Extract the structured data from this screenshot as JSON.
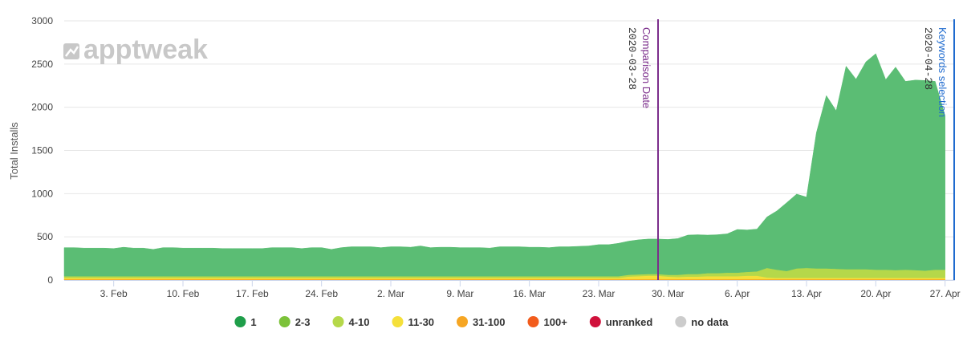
{
  "watermark": {
    "text": "apptweak"
  },
  "chart_data": {
    "type": "area",
    "stacked": true,
    "ylabel": "Total Installs",
    "ylim": [
      0,
      3000
    ],
    "y_ticks": [
      0,
      500,
      1000,
      1500,
      2000,
      2500,
      3000
    ],
    "x_start": "2020-01-29",
    "x_end": "2020-04-28",
    "x_ticks": [
      {
        "day": 5,
        "label": "3. Feb"
      },
      {
        "day": 12,
        "label": "10. Feb"
      },
      {
        "day": 19,
        "label": "17. Feb"
      },
      {
        "day": 26,
        "label": "24. Feb"
      },
      {
        "day": 33,
        "label": "2. Mar"
      },
      {
        "day": 40,
        "label": "9. Mar"
      },
      {
        "day": 47,
        "label": "16. Mar"
      },
      {
        "day": 54,
        "label": "23. Mar"
      },
      {
        "day": 61,
        "label": "30. Mar"
      },
      {
        "day": 68,
        "label": "6. Apr"
      },
      {
        "day": 75,
        "label": "13. Apr"
      },
      {
        "day": 82,
        "label": "20. Apr"
      },
      {
        "day": 89,
        "label": "27. Apr"
      }
    ],
    "x_day_range": [
      0,
      90
    ],
    "series": [
      {
        "name": "31-100",
        "color": "#f6a623",
        "values": [
          10,
          10,
          10,
          10,
          10,
          10,
          10,
          10,
          10,
          10,
          10,
          10,
          10,
          10,
          10,
          10,
          10,
          10,
          10,
          10,
          10,
          10,
          10,
          10,
          10,
          10,
          10,
          10,
          10,
          10,
          10,
          10,
          10,
          10,
          10,
          10,
          10,
          10,
          10,
          10,
          10,
          10,
          10,
          10,
          10,
          10,
          10,
          10,
          10,
          10,
          10,
          10,
          10,
          10,
          10,
          10,
          10,
          10,
          10,
          10,
          10,
          10,
          10,
          10,
          10,
          10,
          10,
          10,
          10,
          10,
          10,
          10,
          10,
          10,
          10,
          10,
          10,
          10,
          10,
          10,
          10,
          10,
          10,
          10,
          10,
          10,
          10,
          10,
          10,
          10
        ]
      },
      {
        "name": "11-30",
        "color": "#f5e03a",
        "values": [
          15,
          15,
          15,
          15,
          15,
          15,
          15,
          15,
          15,
          15,
          15,
          15,
          15,
          15,
          15,
          15,
          15,
          15,
          15,
          15,
          15,
          15,
          15,
          15,
          15,
          15,
          15,
          15,
          15,
          15,
          15,
          15,
          15,
          15,
          15,
          15,
          15,
          15,
          15,
          15,
          15,
          15,
          15,
          15,
          15,
          15,
          15,
          15,
          15,
          15,
          15,
          15,
          15,
          15,
          15,
          15,
          15,
          30,
          35,
          40,
          40,
          30,
          25,
          30,
          30,
          35,
          35,
          35,
          35,
          40,
          40,
          20,
          15,
          15,
          15,
          15,
          15,
          15,
          15,
          15,
          15,
          15,
          15,
          15,
          15,
          15,
          15,
          15,
          15,
          15
        ]
      },
      {
        "name": "4-10",
        "color": "#b5d84a",
        "values": [
          20,
          20,
          20,
          20,
          20,
          20,
          20,
          20,
          20,
          20,
          20,
          20,
          20,
          20,
          20,
          20,
          20,
          20,
          20,
          20,
          20,
          20,
          20,
          20,
          20,
          20,
          20,
          20,
          20,
          20,
          20,
          20,
          20,
          20,
          20,
          20,
          20,
          20,
          20,
          20,
          20,
          20,
          20,
          20,
          20,
          20,
          20,
          20,
          20,
          20,
          20,
          20,
          20,
          20,
          20,
          20,
          20,
          20,
          20,
          20,
          20,
          20,
          25,
          30,
          30,
          35,
          35,
          40,
          40,
          45,
          50,
          110,
          95,
          80,
          110,
          115,
          110,
          110,
          105,
          100,
          100,
          100,
          95,
          95,
          90,
          95,
          90,
          85,
          95,
          95
        ]
      },
      {
        "name": "1",
        "color": "#5bbd74",
        "values": [
          330,
          330,
          325,
          325,
          325,
          320,
          335,
          325,
          325,
          310,
          330,
          330,
          325,
          325,
          325,
          325,
          320,
          320,
          320,
          320,
          320,
          330,
          330,
          330,
          320,
          330,
          330,
          310,
          330,
          340,
          340,
          340,
          330,
          340,
          340,
          335,
          350,
          330,
          335,
          335,
          330,
          330,
          330,
          325,
          340,
          340,
          340,
          335,
          335,
          330,
          340,
          340,
          345,
          350,
          365,
          365,
          380,
          390,
          400,
          405,
          405,
          410,
          420,
          450,
          455,
          440,
          445,
          450,
          500,
          485,
          490,
          590,
          680,
          790,
          860,
          820,
          1570,
          2000,
          1830,
          2350,
          2200,
          2400,
          2500,
          2200,
          2350,
          2180,
          2200,
          2200,
          2180,
          1780
        ]
      }
    ],
    "markers": [
      {
        "day": 60,
        "label": "Comparison Date",
        "date": "2020-03-28",
        "color": "#7b2d8b"
      },
      {
        "day": 90,
        "label": "Keywords selection",
        "date": "2020-04-28",
        "color": "#1f6bcf"
      }
    ],
    "legend": {
      "position": "bottom",
      "items": [
        {
          "label": "1",
          "color": "#1f9e4a"
        },
        {
          "label": "2-3",
          "color": "#7cc23a"
        },
        {
          "label": "4-10",
          "color": "#b5d84a"
        },
        {
          "label": "11-30",
          "color": "#f5e03a"
        },
        {
          "label": "31-100",
          "color": "#f6a623"
        },
        {
          "label": "100+",
          "color": "#f25c1c"
        },
        {
          "label": "unranked",
          "color": "#d0113b"
        },
        {
          "label": "no data",
          "color": "#cccccc"
        }
      ]
    }
  }
}
